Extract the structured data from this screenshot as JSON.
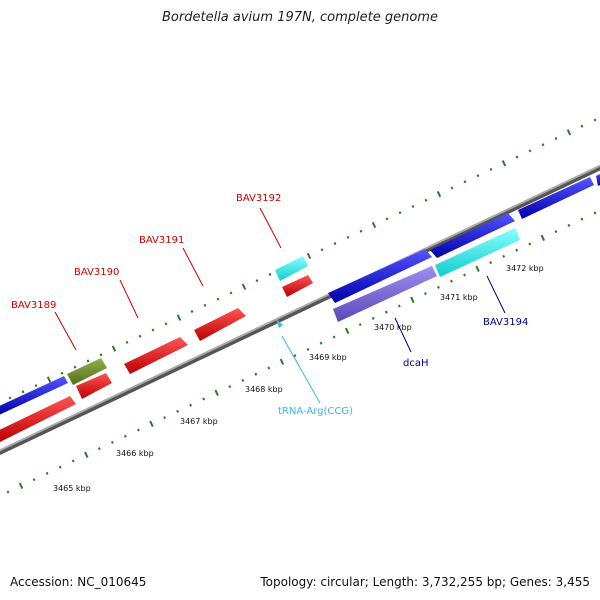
{
  "title": "Bordetella avium 197N, complete genome",
  "accession": "Accession: NC_010645",
  "topology": "Topology: circular; Length: 3,732,255 bp; Genes: 3,455",
  "colors": {
    "forward_gene": "#1010dd",
    "reverse_gene": "#dd1010",
    "trna": "#22dddd",
    "olive_gene": "#6b8e23",
    "purple_gene": "#7b68d8",
    "backbone": "#888888",
    "tick": "#2a7a2a",
    "label_red": "#cc0000",
    "label_blue": "#00008b",
    "label_cyan": "#33bbdd"
  },
  "scale_labels": [
    "3465 kbp",
    "3466 kbp",
    "3467 kbp",
    "3468 kbp",
    "3469 kbp",
    "3470 kbp",
    "3471 kbp",
    "3472 kbp"
  ],
  "gene_labels": {
    "bav3189": "BAV3189",
    "bav3190": "BAV3190",
    "bav3191": "BAV3191",
    "bav3192": "BAV3192",
    "trna_arg": "tRNA-Arg(CCG)",
    "dcah": "dcaH",
    "bav3194": "BAV3194"
  }
}
